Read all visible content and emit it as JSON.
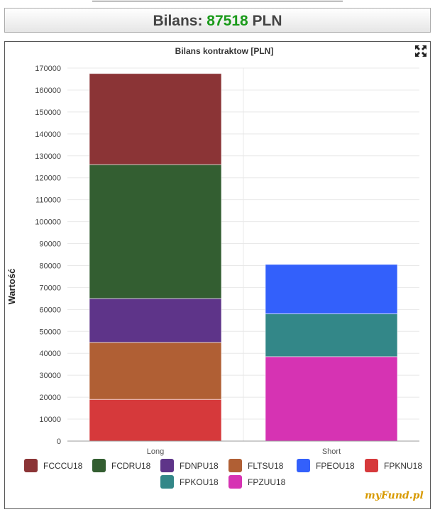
{
  "header": {
    "balance_label": "Bilans:",
    "balance_value": "87518",
    "currency": "PLN"
  },
  "chart_data": {
    "type": "bar",
    "stacked": true,
    "title": "Bilans kontraktow [PLN]",
    "xlabel": "",
    "ylabel": "Wartość",
    "categories": [
      "Long",
      "Short"
    ],
    "ylim": [
      0,
      170000
    ],
    "yticks": [
      0,
      10000,
      20000,
      30000,
      40000,
      50000,
      60000,
      70000,
      80000,
      90000,
      100000,
      110000,
      120000,
      130000,
      140000,
      150000,
      160000,
      170000
    ],
    "grid": true,
    "legend_position": "bottom",
    "series": [
      {
        "name": "FCCCU18",
        "color": "#8b3436",
        "values": [
          41500,
          0
        ]
      },
      {
        "name": "FCDRU18",
        "color": "#335e31",
        "values": [
          61000,
          0
        ]
      },
      {
        "name": "FDNPU18",
        "color": "#5e3489",
        "values": [
          20000,
          0
        ]
      },
      {
        "name": "FLTSU18",
        "color": "#b05f34",
        "values": [
          26000,
          0
        ]
      },
      {
        "name": "FPEOU18",
        "color": "#3360fb",
        "values": [
          0,
          22500
        ]
      },
      {
        "name": "FPKNU18",
        "color": "#d6393b",
        "values": [
          19000,
          0
        ]
      },
      {
        "name": "FPKOU18",
        "color": "#338788",
        "values": [
          0,
          19500
        ]
      },
      {
        "name": "FPZUU18",
        "color": "#d633b3",
        "values": [
          0,
          38500
        ]
      }
    ],
    "stack_order_bottom_to_top": [
      "FPKNU18",
      "FLTSU18",
      "FDNPU18",
      "FCDRU18",
      "FCCCU18",
      "FPZUU18",
      "FPKOU18",
      "FPEOU18"
    ]
  },
  "icons": {
    "fullscreen": "fullscreen-icon"
  },
  "watermark": {
    "text": "myFund.pl"
  }
}
